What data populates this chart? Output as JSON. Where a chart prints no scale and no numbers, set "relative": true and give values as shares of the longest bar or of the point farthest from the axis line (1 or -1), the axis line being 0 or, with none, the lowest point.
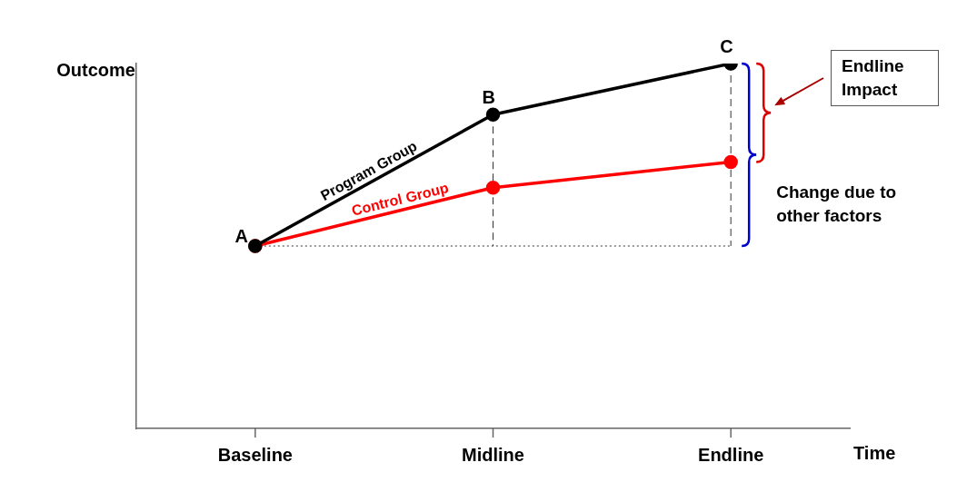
{
  "chart_data": {
    "type": "line",
    "relative": true,
    "xlabel": "Time",
    "ylabel": "Outcome",
    "categories": [
      "Baseline",
      "Midline",
      "Endline"
    ],
    "series": [
      {
        "name": "Program Group",
        "color": "#000000",
        "values": [
          0.5,
          0.86,
          1
        ]
      },
      {
        "name": "Control Group",
        "color": "#ff0000",
        "values": [
          0.5,
          0.66,
          0.73
        ]
      }
    ],
    "annotations": [
      {
        "text": "A",
        "x": "Baseline",
        "y": 0.5
      },
      {
        "text": "B",
        "x": "Midline",
        "y": 0.86
      },
      {
        "text": "C",
        "x": "Endline",
        "y": 1
      },
      "Endline Impact",
      "Change due to other factors"
    ],
    "ref_lines": [
      {
        "axis": "x",
        "value": "Midline",
        "line_style": "dashed"
      },
      {
        "axis": "x",
        "value": "Endline",
        "line_style": "dashed"
      },
      {
        "axis": "y",
        "value": 0.5,
        "line_style": "dotted"
      }
    ],
    "marker": "circle",
    "grid": false,
    "legend": false
  }
}
